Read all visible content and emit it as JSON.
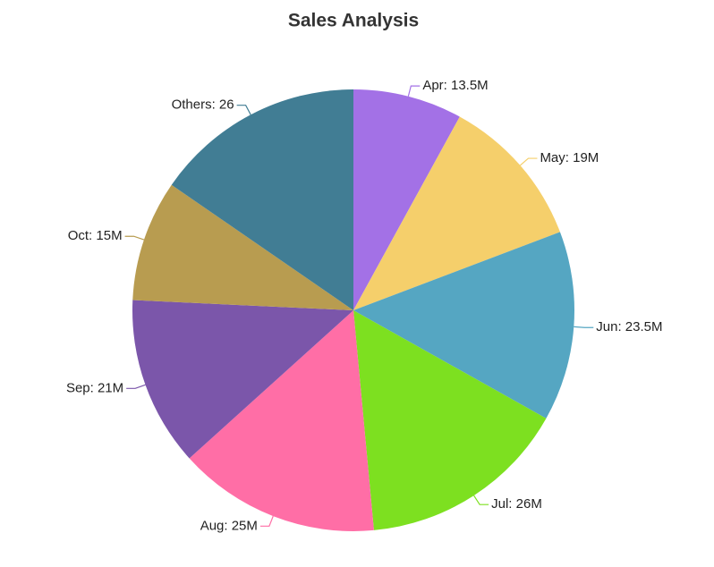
{
  "chart_data": {
    "type": "pie",
    "title": "Sales Analysis",
    "values": [
      13.5,
      19,
      23.5,
      26,
      25,
      21,
      15,
      26
    ],
    "value_labels": [
      "Apr: 13.5M",
      "May: 19M",
      "Jun: 23.5M",
      "Jul: 26M",
      "Aug: 25M",
      "Sep: 21M",
      "Oct: 15M",
      "Others: 26"
    ],
    "colors": [
      "#a371e6",
      "#f5cf6b",
      "#55a6c2",
      "#7de020",
      "#ff6ea6",
      "#7b56aa",
      "#b89c50",
      "#417d94"
    ]
  }
}
